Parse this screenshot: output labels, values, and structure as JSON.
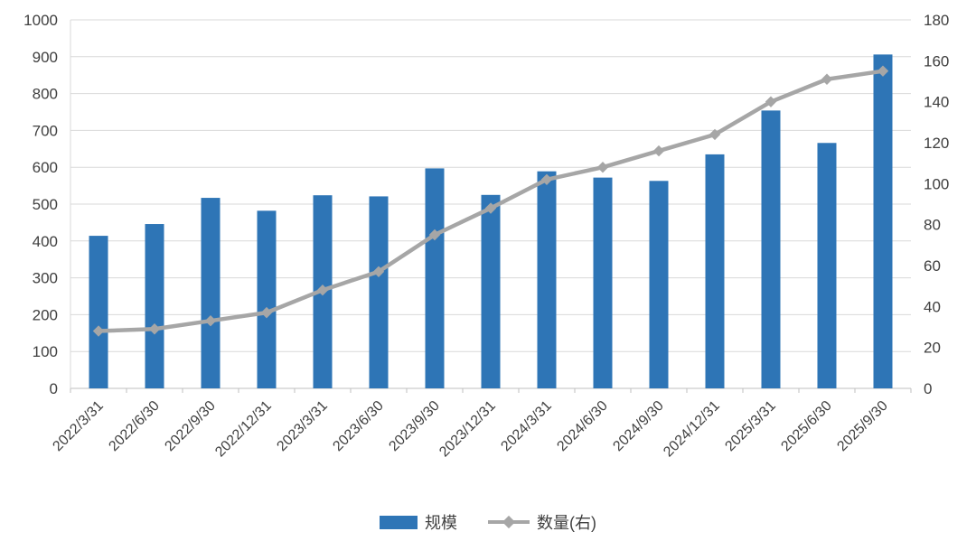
{
  "chart_data": {
    "type": "bar",
    "subtype": "combo-bar-line-dual-axis",
    "title": "",
    "categories": [
      "2022/3/31",
      "2022/6/30",
      "2022/9/30",
      "2022/12/31",
      "2023/3/31",
      "2023/6/30",
      "2023/9/30",
      "2023/12/31",
      "2024/3/31",
      "2024/6/30",
      "2024/9/30",
      "2024/12/31",
      "2025/3/31",
      "2025/6/30",
      "2025/9/30"
    ],
    "series": [
      {
        "name": "规模",
        "type": "bar",
        "axis": "left",
        "color": "#2E75B6",
        "values": [
          414,
          446,
          517,
          482,
          524,
          521,
          597,
          525,
          589,
          572,
          563,
          635,
          754,
          666,
          906
        ]
      },
      {
        "name": "数量(右)",
        "type": "line",
        "axis": "right",
        "color": "#A6A6A6",
        "marker": "diamond",
        "values": [
          28,
          29,
          33,
          37,
          48,
          57,
          75,
          88,
          102,
          108,
          116,
          124,
          140,
          151,
          155
        ]
      }
    ],
    "left_axis": {
      "min": 0,
      "max": 1000,
      "step": 100,
      "ticks": [
        "0",
        "100",
        "200",
        "300",
        "400",
        "500",
        "600",
        "700",
        "800",
        "900",
        "1000"
      ]
    },
    "right_axis": {
      "min": 0,
      "max": 180,
      "step": 20,
      "ticks": [
        "0",
        "20",
        "40",
        "60",
        "80",
        "100",
        "120",
        "140",
        "160",
        "180"
      ]
    },
    "grid": true,
    "legend_position": "bottom",
    "x_label_rotation": -45
  },
  "legend": {
    "items": [
      {
        "label": "规模"
      },
      {
        "label": "数量(右)"
      }
    ]
  },
  "colors": {
    "bar": "#2E75B6",
    "line": "#A6A6A6",
    "grid": "#D9D9D9",
    "axis_line": "#BFBFBF",
    "axis_text": "#404040",
    "background": "#FFFFFF"
  }
}
